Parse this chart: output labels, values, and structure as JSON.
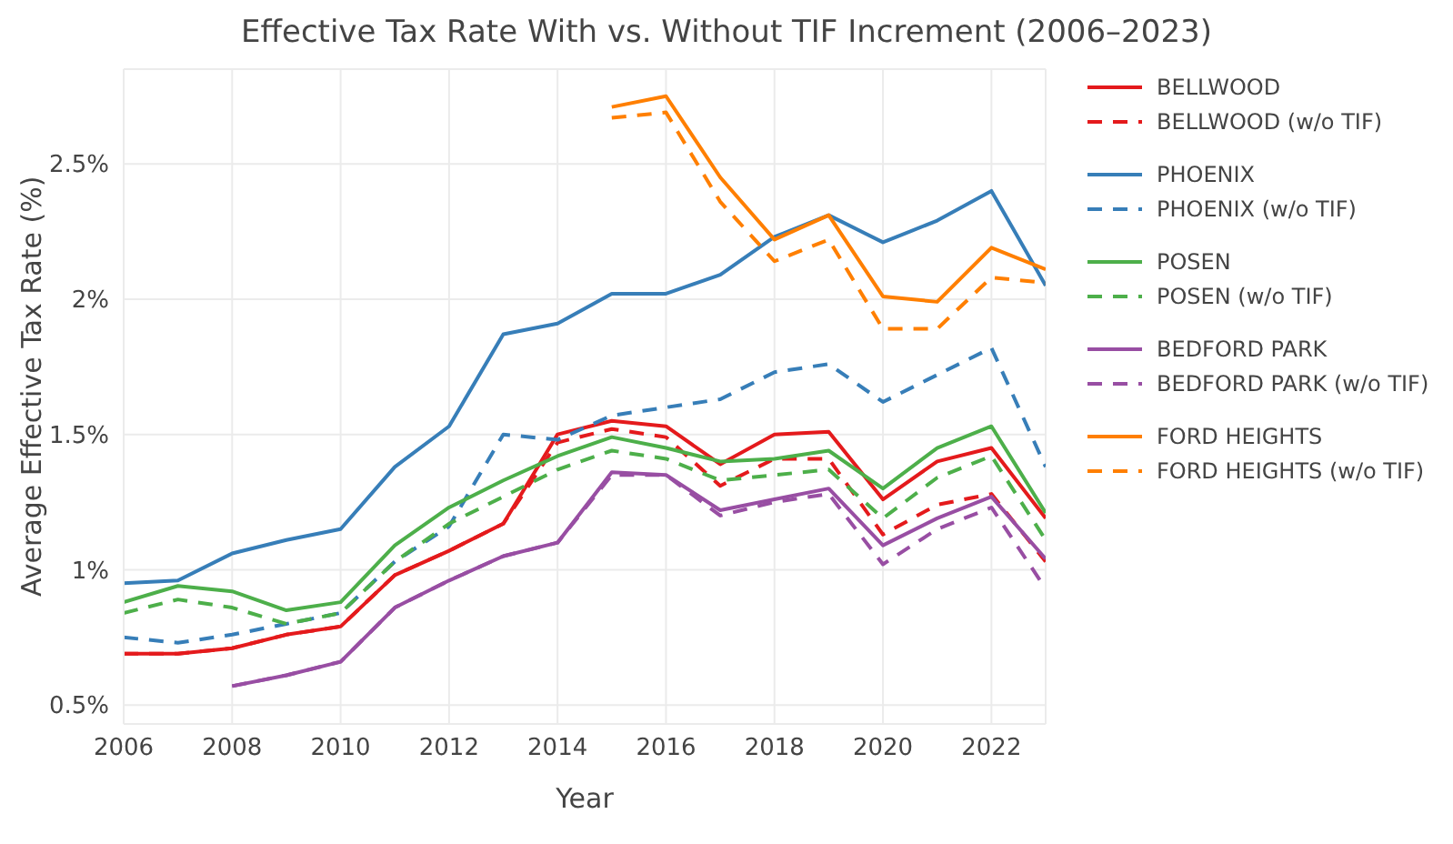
{
  "chart_data": {
    "type": "line",
    "title": "Effective Tax Rate With vs. Without TIF Increment (2006–2023)",
    "xlabel": "Year",
    "ylabel": "Average Effective Tax Rate (%)",
    "x": [
      2006,
      2007,
      2008,
      2009,
      2010,
      2011,
      2012,
      2013,
      2014,
      2015,
      2016,
      2017,
      2018,
      2019,
      2020,
      2021,
      2022,
      2023
    ],
    "series": [
      {
        "name": "BELLWOOD",
        "color": "#e41a1c",
        "line_style": "solid",
        "values": [
          0.69,
          0.69,
          0.71,
          0.76,
          0.79,
          0.98,
          1.07,
          1.17,
          1.5,
          1.55,
          1.53,
          1.39,
          1.5,
          1.51,
          1.26,
          1.4,
          1.45,
          1.19
        ]
      },
      {
        "name": "BELLWOOD (w/o TIF)",
        "color": "#e41a1c",
        "line_style": "dashed",
        "values": [
          0.69,
          0.69,
          0.71,
          0.76,
          0.79,
          0.98,
          1.07,
          1.17,
          1.47,
          1.52,
          1.49,
          1.31,
          1.41,
          1.41,
          1.13,
          1.24,
          1.28,
          1.03
        ]
      },
      {
        "name": "PHOENIX",
        "color": "#377eb8",
        "line_style": "solid",
        "values": [
          0.95,
          0.96,
          1.06,
          1.11,
          1.15,
          1.38,
          1.53,
          1.87,
          1.91,
          2.02,
          2.02,
          2.09,
          2.23,
          2.31,
          2.21,
          2.29,
          2.4,
          2.05
        ]
      },
      {
        "name": "PHOENIX (w/o TIF)",
        "color": "#377eb8",
        "line_style": "dashed",
        "values": [
          0.75,
          0.73,
          0.76,
          0.8,
          0.84,
          1.03,
          1.16,
          1.5,
          1.48,
          1.57,
          1.6,
          1.63,
          1.73,
          1.76,
          1.62,
          1.72,
          1.82,
          1.38
        ]
      },
      {
        "name": "POSEN",
        "color": "#4daf4a",
        "line_style": "solid",
        "values": [
          0.88,
          0.94,
          0.92,
          0.85,
          0.88,
          1.09,
          1.23,
          1.33,
          1.42,
          1.49,
          1.45,
          1.4,
          1.41,
          1.44,
          1.3,
          1.45,
          1.53,
          1.21
        ]
      },
      {
        "name": "POSEN (w/o TIF)",
        "color": "#4daf4a",
        "line_style": "dashed",
        "values": [
          0.84,
          0.89,
          0.86,
          0.8,
          0.84,
          1.03,
          1.17,
          1.27,
          1.37,
          1.44,
          1.41,
          1.33,
          1.35,
          1.37,
          1.19,
          1.34,
          1.42,
          1.11
        ]
      },
      {
        "name": "BEDFORD PARK",
        "color": "#984ea3",
        "line_style": "solid",
        "values": [
          null,
          null,
          0.57,
          0.61,
          0.66,
          0.86,
          0.96,
          1.05,
          1.1,
          1.36,
          1.35,
          1.22,
          1.26,
          1.3,
          1.09,
          1.19,
          1.27,
          1.04
        ]
      },
      {
        "name": "BEDFORD PARK (w/o TIF)",
        "color": "#984ea3",
        "line_style": "dashed",
        "values": [
          null,
          null,
          0.57,
          0.61,
          0.66,
          0.86,
          0.96,
          1.05,
          1.1,
          1.35,
          1.35,
          1.2,
          1.25,
          1.28,
          1.02,
          1.15,
          1.23,
          0.93
        ]
      },
      {
        "name": "FORD HEIGHTS",
        "color": "#ff7f00",
        "line_style": "solid",
        "values": [
          null,
          null,
          null,
          null,
          null,
          null,
          null,
          null,
          null,
          2.71,
          2.75,
          2.45,
          2.22,
          2.31,
          2.01,
          1.99,
          2.19,
          2.11
        ]
      },
      {
        "name": "FORD HEIGHTS (w/o TIF)",
        "color": "#ff7f00",
        "line_style": "dashed",
        "values": [
          null,
          null,
          null,
          null,
          null,
          null,
          null,
          null,
          null,
          2.67,
          2.69,
          2.36,
          2.14,
          2.22,
          1.89,
          1.89,
          2.08,
          2.06
        ]
      }
    ],
    "xlim": [
      2006,
      2023
    ],
    "xticks": [
      2006,
      2008,
      2010,
      2012,
      2014,
      2016,
      2018,
      2020,
      2022
    ],
    "ylim": [
      0.43,
      2.85
    ],
    "yticks": [
      {
        "value": 0.5,
        "label": "0.5%"
      },
      {
        "value": 1,
        "label": "1%"
      },
      {
        "value": 1.5,
        "label": "1.5%"
      },
      {
        "value": 2,
        "label": "2%"
      },
      {
        "value": 2.5,
        "label": "2.5%"
      }
    ],
    "grid": true,
    "legend": "right",
    "marker": "none"
  }
}
